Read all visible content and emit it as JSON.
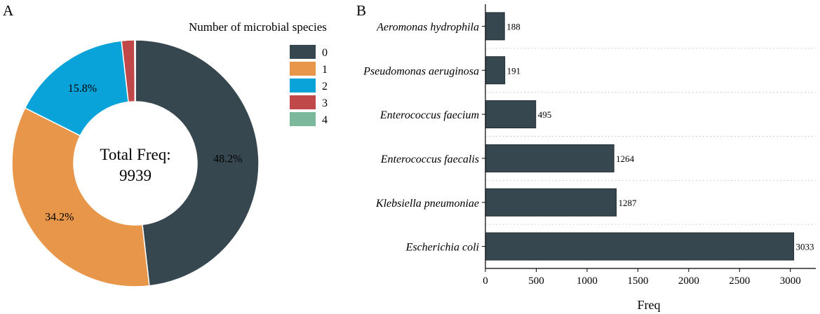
{
  "chart_data": [
    {
      "type": "pie",
      "panel_label": "A",
      "legend_title": "Number of microbial species",
      "center_label": "Total Freq:",
      "center_value": "9939",
      "categories": [
        "0",
        "1",
        "2",
        "3",
        "4"
      ],
      "values": [
        48.2,
        34.2,
        15.8,
        1.7,
        0.1
      ],
      "slice_labels": [
        "48.2%",
        "34.2%",
        "15.8%",
        "",
        ""
      ],
      "colors": [
        "#37474f",
        "#e8964a",
        "#0aa3d9",
        "#c04848",
        "#7cb89c"
      ],
      "legend_position": "right"
    },
    {
      "type": "bar",
      "orientation": "horizontal",
      "panel_label": "B",
      "categories": [
        "Aeromonas hydrophila",
        "Pseudomonas aeruginosa",
        "Enterococcus faecium",
        "Enterococcus faecalis",
        "Klebsiella pneumoniae",
        "Escherichia coli"
      ],
      "values": [
        188,
        191,
        495,
        1264,
        1287,
        3033
      ],
      "value_labels": [
        "188",
        "191",
        "495",
        "1264",
        "1287",
        "3033"
      ],
      "xlabel": "Freq",
      "xlim": [
        0,
        3250
      ],
      "xticks": [
        0,
        500,
        1000,
        1500,
        2000,
        2500,
        3000
      ],
      "xtick_labels": [
        "0",
        "500",
        "1000",
        "1500",
        "2000",
        "2500",
        "3000"
      ],
      "bar_color": "#37474f",
      "grid": "horizontal dashed"
    }
  ]
}
